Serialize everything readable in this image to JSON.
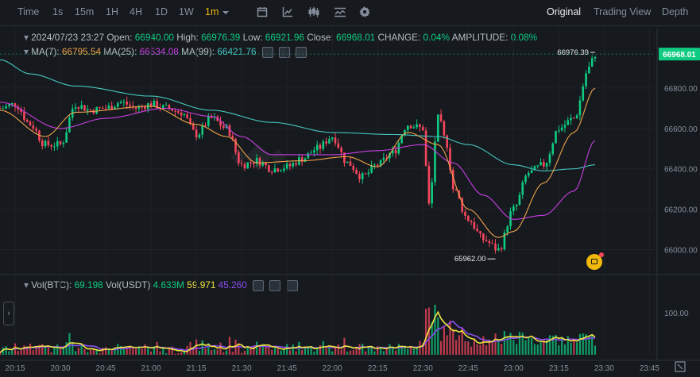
{
  "toolbar": {
    "intervals": [
      {
        "label": "Time",
        "active": false
      },
      {
        "label": "1s",
        "active": false
      },
      {
        "label": "15m",
        "active": false
      },
      {
        "label": "1H",
        "active": false
      },
      {
        "label": "4H",
        "active": false
      },
      {
        "label": "1D",
        "active": false
      },
      {
        "label": "1W",
        "active": false
      },
      {
        "label": "1m",
        "active": true
      }
    ],
    "icons": [
      "calendar-icon",
      "line-chart-icon",
      "candlestick-icon",
      "indicators-icon",
      "settings-icon"
    ],
    "views": [
      {
        "label": "Original",
        "active": true
      },
      {
        "label": "Trading View",
        "active": false
      },
      {
        "label": "Depth",
        "active": false
      }
    ]
  },
  "ohlc": {
    "datetime": "2024/07/23 23:27",
    "open_label": "Open:",
    "open": "66940.00",
    "high_label": "High:",
    "high": "66976.39",
    "low_label": "Low:",
    "low": "66921.96",
    "close_label": "Close:",
    "close": "66968.01",
    "change_label": "CHANGE:",
    "change": "0.04%",
    "amplitude_label": "AMPLITUDE:",
    "amplitude": "0.08%"
  },
  "ma": {
    "ma7_label": "MA(7):",
    "ma7": "66795.54",
    "ma25_label": "MA(25):",
    "ma25": "66534.08",
    "ma99_label": "MA(99):",
    "ma99": "66421.76"
  },
  "volume": {
    "btc_label": "Vol(BTC):",
    "btc": "69.198",
    "usdt_label": "Vol(USDT)",
    "usdt": "4.633M",
    "ma1": "59.971",
    "ma2": "45.260"
  },
  "price_axis": [
    "66800.00",
    "66600.00",
    "66400.00",
    "66200.00",
    "66000.00"
  ],
  "volume_axis": [
    "100.00"
  ],
  "time_axis": [
    "20:15",
    "20:30",
    "20:45",
    "21:00",
    "21:15",
    "21:30",
    "21:45",
    "22:00",
    "22:15",
    "22:30",
    "22:45",
    "23:00",
    "23:15",
    "23:30",
    "23:45"
  ],
  "current_price": "66968.01",
  "high_marker": "66976.39",
  "low_marker": "65962.00",
  "colors": {
    "up": "#0ecb81",
    "down": "#f6465d",
    "ma7": "#f0a24b",
    "ma25": "#c83fe0",
    "ma99": "#46c5c0",
    "vol_ma1": "#f0e442",
    "vol_ma2": "#8a4cf0",
    "accent": "#f0b90b",
    "background": "#161a1e"
  },
  "chart_data": {
    "type": "candlestick",
    "symbol_interval": "1m",
    "price_range": [
      65900,
      67000
    ],
    "x_range": [
      "20:10",
      "23:47"
    ],
    "close_anchors": [
      [
        "20:10",
        66700
      ],
      [
        "20:15",
        66720
      ],
      [
        "20:20",
        66620
      ],
      [
        "20:25",
        66520
      ],
      [
        "20:30",
        66520
      ],
      [
        "20:35",
        66720
      ],
      [
        "20:40",
        66690
      ],
      [
        "20:45",
        66700
      ],
      [
        "20:50",
        66730
      ],
      [
        "20:55",
        66700
      ],
      [
        "21:00",
        66720
      ],
      [
        "21:05",
        66700
      ],
      [
        "21:10",
        66680
      ],
      [
        "21:15",
        66570
      ],
      [
        "21:20",
        66650
      ],
      [
        "21:25",
        66600
      ],
      [
        "21:30",
        66420
      ],
      [
        "21:35",
        66440
      ],
      [
        "21:40",
        66400
      ],
      [
        "21:45",
        66410
      ],
      [
        "21:50",
        66450
      ],
      [
        "21:55",
        66500
      ],
      [
        "22:00",
        66560
      ],
      [
        "22:05",
        66430
      ],
      [
        "22:10",
        66360
      ],
      [
        "22:15",
        66420
      ],
      [
        "22:20",
        66480
      ],
      [
        "22:25",
        66620
      ],
      [
        "22:30",
        66600
      ],
      [
        "22:32",
        66220
      ],
      [
        "22:35",
        66650
      ],
      [
        "22:38",
        66520
      ],
      [
        "22:40",
        66300
      ],
      [
        "22:45",
        66150
      ],
      [
        "22:50",
        66050
      ],
      [
        "22:55",
        66000
      ],
      [
        "23:00",
        66200
      ],
      [
        "23:05",
        66380
      ],
      [
        "23:10",
        66420
      ],
      [
        "23:15",
        66600
      ],
      [
        "23:20",
        66650
      ],
      [
        "23:25",
        66900
      ],
      [
        "23:27",
        66968
      ]
    ],
    "ma7_anchors": [
      [
        "20:10",
        66690
      ],
      [
        "20:25",
        66560
      ],
      [
        "20:35",
        66680
      ],
      [
        "21:00",
        66710
      ],
      [
        "21:15",
        66620
      ],
      [
        "21:25",
        66560
      ],
      [
        "21:35",
        66430
      ],
      [
        "21:50",
        66440
      ],
      [
        "22:05",
        66460
      ],
      [
        "22:15",
        66410
      ],
      [
        "22:25",
        66580
      ],
      [
        "22:35",
        66520
      ],
      [
        "22:45",
        66200
      ],
      [
        "22:55",
        66060
      ],
      [
        "23:00",
        66090
      ],
      [
        "23:10",
        66330
      ],
      [
        "23:20",
        66580
      ],
      [
        "23:27",
        66800
      ]
    ],
    "ma25_anchors": [
      [
        "20:10",
        66730
      ],
      [
        "20:30",
        66600
      ],
      [
        "20:45",
        66650
      ],
      [
        "21:05",
        66700
      ],
      [
        "21:20",
        66660
      ],
      [
        "21:30",
        66560
      ],
      [
        "21:40",
        66470
      ],
      [
        "22:00",
        66470
      ],
      [
        "22:15",
        66490
      ],
      [
        "22:30",
        66520
      ],
      [
        "22:40",
        66430
      ],
      [
        "22:50",
        66270
      ],
      [
        "23:00",
        66150
      ],
      [
        "23:10",
        66170
      ],
      [
        "23:20",
        66290
      ],
      [
        "23:27",
        66540
      ]
    ],
    "ma99_anchors": [
      [
        "20:10",
        66940
      ],
      [
        "20:20",
        66870
      ],
      [
        "20:35",
        66810
      ],
      [
        "21:00",
        66760
      ],
      [
        "21:20",
        66690
      ],
      [
        "21:40",
        66630
      ],
      [
        "22:00",
        66580
      ],
      [
        "22:20",
        66570
      ],
      [
        "22:35",
        66560
      ],
      [
        "22:45",
        66520
      ],
      [
        "23:00",
        66420
      ],
      [
        "23:10",
        66390
      ],
      [
        "23:20",
        66400
      ],
      [
        "23:27",
        66420
      ]
    ],
    "high": {
      "time": "23:27",
      "value": 66976.39
    },
    "low": {
      "time": "22:54",
      "value": 65962.0
    }
  }
}
